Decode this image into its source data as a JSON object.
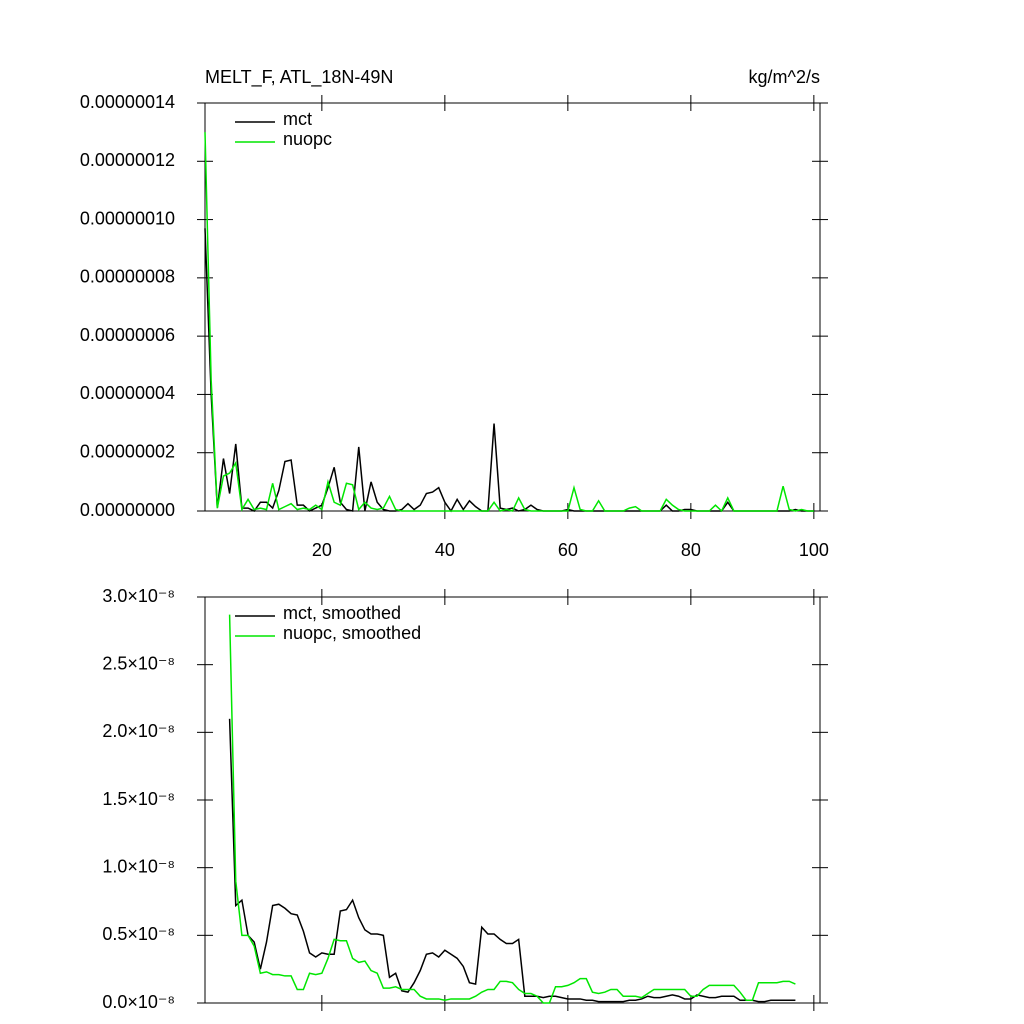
{
  "chart_data": [
    {
      "type": "line",
      "title": "MELT_F, ATL_18N-49N",
      "title_right": "kg/m^2/s",
      "x": [
        1,
        2,
        3,
        4,
        5,
        6,
        7,
        8,
        9,
        10,
        11,
        12,
        13,
        14,
        15,
        16,
        17,
        18,
        19,
        20,
        21,
        22,
        23,
        24,
        25,
        26,
        27,
        28,
        29,
        30,
        31,
        32,
        33,
        34,
        35,
        36,
        37,
        38,
        39,
        40,
        41,
        42,
        43,
        44,
        45,
        46,
        47,
        48,
        49,
        50,
        51,
        52,
        53,
        54,
        55,
        56,
        57,
        58,
        59,
        60,
        61,
        62,
        63,
        64,
        65,
        66,
        67,
        68,
        69,
        70,
        71,
        72,
        73,
        74,
        75,
        76,
        77,
        78,
        79,
        80,
        81,
        82,
        83,
        84,
        85,
        86,
        87,
        88,
        89,
        90,
        91,
        92,
        93,
        94,
        95,
        96,
        97,
        98,
        99,
        100
      ],
      "series": [
        {
          "name": "mct",
          "color": "#000000",
          "values": [
            9.7e-08,
            4e-08,
            1e-09,
            1.8e-08,
            6e-09,
            2.3e-08,
            1e-09,
            1e-09,
            0,
            3e-09,
            3e-09,
            1e-09,
            7e-09,
            1.7e-08,
            1.75e-08,
            2e-09,
            2e-09,
            0,
            1e-09,
            2e-09,
            8e-09,
            1.5e-08,
            3e-09,
            5e-10,
            0,
            2.2e-08,
            0,
            1e-08,
            3e-09,
            5e-10,
            0,
            0,
            5e-10,
            2.5e-09,
            5e-10,
            2e-09,
            6e-09,
            6.5e-09,
            8e-09,
            3e-09,
            0,
            4e-09,
            5e-10,
            3.5e-09,
            1.5e-09,
            0,
            0,
            3e-08,
            1e-09,
            5e-10,
            1e-09,
            0,
            5e-10,
            2e-09,
            5e-10,
            0,
            0,
            0,
            0,
            5e-10,
            0,
            0,
            0,
            0,
            0,
            0,
            0,
            0,
            0,
            0,
            0,
            0,
            0,
            0,
            0,
            2e-09,
            0,
            0,
            5e-10,
            5e-10,
            0,
            0,
            0,
            0,
            0,
            3e-09,
            0,
            0,
            0,
            0,
            0,
            0,
            0,
            0,
            0,
            0,
            5e-10,
            0,
            0,
            0
          ]
        },
        {
          "name": "nuopc",
          "color": "#00e600",
          "values": [
            1.3e-07,
            4.5e-08,
            1e-09,
            1.2e-08,
            1.3e-08,
            1.65e-08,
            5e-10,
            4e-09,
            5e-10,
            1e-09,
            5e-10,
            9.5e-09,
            5e-10,
            1.5e-09,
            2.5e-09,
            5e-10,
            1e-09,
            5e-10,
            2e-09,
            5e-10,
            1e-08,
            3e-09,
            2e-09,
            9.5e-09,
            9e-09,
            5e-10,
            3e-09,
            1e-09,
            5e-10,
            1e-09,
            5e-09,
            5e-10,
            0,
            0,
            0,
            0,
            0,
            0,
            0,
            0,
            0,
            0,
            0,
            0,
            0,
            0,
            0,
            3e-09,
            0,
            5e-10,
            0,
            4.5e-09,
            5e-10,
            0,
            0,
            0,
            0,
            0,
            0,
            0,
            8e-09,
            5e-10,
            0,
            0,
            3.5e-09,
            0,
            0,
            0,
            0,
            1e-09,
            1.5e-09,
            0,
            0,
            0,
            0,
            4e-09,
            2e-09,
            5e-10,
            0,
            0,
            0,
            0,
            0,
            2e-09,
            0,
            4.5e-09,
            0,
            0,
            0,
            0,
            0,
            0,
            0,
            0,
            8.5e-09,
            5e-10,
            0,
            5e-10,
            0,
            0
          ]
        }
      ],
      "xlim": [
        1,
        101
      ],
      "xticks": [
        20,
        40,
        60,
        80,
        100
      ],
      "ylim": [
        0,
        1.4e-07
      ],
      "yticks": [
        {
          "value": 0,
          "label": "0.00000000"
        },
        {
          "value": 2e-08,
          "label": "0.00000002"
        },
        {
          "value": 4e-08,
          "label": "0.00000004"
        },
        {
          "value": 6e-08,
          "label": "0.00000006"
        },
        {
          "value": 8e-08,
          "label": "0.00000008"
        },
        {
          "value": 1e-07,
          "label": "0.00000010"
        },
        {
          "value": 1.2e-07,
          "label": "0.00000012"
        },
        {
          "value": 1.4e-07,
          "label": "0.00000014"
        }
      ],
      "legend": "upper left"
    },
    {
      "type": "line",
      "x": [
        5,
        6,
        7,
        8,
        9,
        10,
        11,
        12,
        13,
        14,
        15,
        16,
        17,
        18,
        19,
        20,
        21,
        22,
        23,
        24,
        25,
        26,
        27,
        28,
        29,
        30,
        31,
        32,
        33,
        34,
        35,
        36,
        37,
        38,
        39,
        40,
        41,
        42,
        43,
        44,
        45,
        46,
        47,
        48,
        49,
        50,
        51,
        52,
        53,
        54,
        55,
        56,
        57,
        58,
        59,
        60,
        61,
        62,
        63,
        64,
        65,
        66,
        67,
        68,
        69,
        70,
        71,
        72,
        73,
        74,
        75,
        76,
        77,
        78,
        79,
        80,
        81,
        82,
        83,
        84,
        85,
        86,
        87,
        88,
        89,
        90,
        91,
        92,
        93,
        94,
        95,
        96,
        97
      ],
      "series": [
        {
          "name": "mct, smoothed",
          "color": "#000000",
          "values": [
            2.1e-08,
            7.2e-09,
            7.6e-09,
            5e-09,
            4.5e-09,
            2.5e-09,
            4.5e-09,
            7.2e-09,
            7.3e-09,
            7e-09,
            6.6e-09,
            6.5e-09,
            5.3e-09,
            3.7e-09,
            3.4e-09,
            3.7e-09,
            3.6e-09,
            3.6e-09,
            6.8e-09,
            6.9e-09,
            7.6e-09,
            6.3e-09,
            5.4e-09,
            5.1e-09,
            5.1e-09,
            5e-09,
            1.9e-09,
            2.2e-09,
            9e-10,
            8e-10,
            1.5e-09,
            2.4e-09,
            3.6e-09,
            3.7e-09,
            3.4e-09,
            3.9e-09,
            3.6e-09,
            3.3e-09,
            2.7e-09,
            1.5e-09,
            1.4e-09,
            5.6e-09,
            5.1e-09,
            5.1e-09,
            4.7e-09,
            4.4e-09,
            4.4e-09,
            4.7e-09,
            5e-10,
            5e-10,
            5e-10,
            4e-10,
            5e-10,
            5e-10,
            4e-10,
            3e-10,
            3e-10,
            3e-10,
            2e-10,
            2e-10,
            1e-10,
            1e-10,
            1e-10,
            1e-10,
            1e-10,
            2e-10,
            2e-10,
            3e-10,
            5e-10,
            4e-10,
            4e-10,
            5e-10,
            6e-10,
            5e-10,
            3e-10,
            3e-10,
            6e-10,
            5e-10,
            4e-10,
            4e-10,
            5e-10,
            5e-10,
            5e-10,
            2e-10,
            2e-10,
            2e-10,
            1e-10,
            1e-10,
            2e-10,
            2e-10,
            2e-10,
            2e-10,
            2e-10
          ]
        },
        {
          "name": "nuopc, smoothed",
          "color": "#00e600",
          "values": [
            2.87e-08,
            9e-09,
            5e-09,
            5e-09,
            4.2e-09,
            2.2e-09,
            2.3e-09,
            2.1e-09,
            2.1e-09,
            2e-09,
            2e-09,
            1e-09,
            1e-09,
            2.2e-09,
            2.1e-09,
            2.2e-09,
            3.3e-09,
            4.7e-09,
            4.6e-09,
            4.6e-09,
            3.3e-09,
            3e-09,
            3.1e-09,
            2.4e-09,
            2.2e-09,
            1.1e-09,
            1.1e-09,
            1.2e-09,
            1e-09,
            1e-09,
            1e-09,
            5e-10,
            3e-10,
            3e-10,
            3e-10,
            2e-10,
            3e-10,
            3e-10,
            3e-10,
            3e-10,
            5e-10,
            8e-10,
            1e-09,
            1e-09,
            1.6e-09,
            1.6e-09,
            1.5e-09,
            1e-09,
            7e-10,
            7e-10,
            5e-10,
            0,
            0,
            1.2e-09,
            1.2e-09,
            1.3e-09,
            1.5e-09,
            1.8e-09,
            1.8e-09,
            8e-10,
            7e-10,
            8e-10,
            1e-09,
            1e-09,
            5e-10,
            5e-10,
            5e-10,
            4e-10,
            7e-10,
            1e-09,
            1e-09,
            1e-09,
            1e-09,
            1e-09,
            1e-09,
            5e-10,
            5e-10,
            1e-09,
            1.3e-09,
            1.3e-09,
            1.3e-09,
            1.3e-09,
            1.3e-09,
            8e-10,
            2e-10,
            2e-10,
            1.5e-09,
            1.5e-09,
            1.5e-09,
            1.5e-09,
            1.6e-09,
            1.6e-09,
            1.4e-09
          ]
        }
      ],
      "xlim": [
        1,
        101
      ],
      "ylim": [
        0,
        3e-08
      ],
      "yticks": [
        {
          "value": 0,
          "label": "0.0×10⁻⁸"
        },
        {
          "value": 5e-09,
          "label": "0.5×10⁻⁸"
        },
        {
          "value": 1e-08,
          "label": "1.0×10⁻⁸"
        },
        {
          "value": 1.5e-08,
          "label": "1.5×10⁻⁸"
        },
        {
          "value": 2e-08,
          "label": "2.0×10⁻⁸"
        },
        {
          "value": 2.5e-08,
          "label": "2.5×10⁻⁸"
        },
        {
          "value": 3e-08,
          "label": "3.0×10⁻⁸"
        }
      ],
      "legend": "upper left"
    }
  ]
}
